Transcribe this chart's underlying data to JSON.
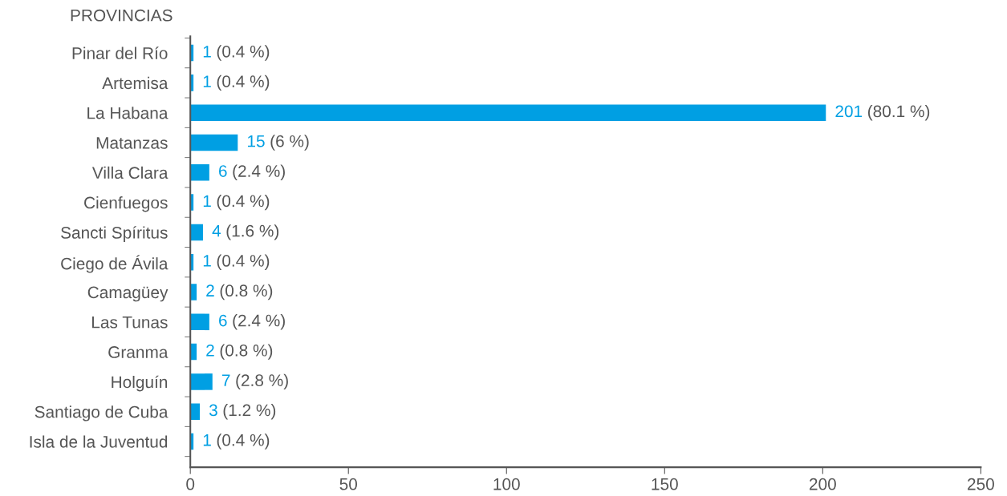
{
  "chart_data": {
    "type": "bar",
    "orientation": "horizontal",
    "ylabel": "PROVINCIAS",
    "categories": [
      "Pinar del Río",
      "Artemisa",
      "La Habana",
      "Matanzas",
      "Villa Clara",
      "Cienfuegos",
      "Sancti Spíritus",
      "Ciego de Ávila",
      "Camagüey",
      "Las Tunas",
      "Granma",
      "Holguín",
      "Santiago de Cuba",
      "Isla de la Juventud"
    ],
    "values": [
      1,
      1,
      201,
      15,
      6,
      1,
      4,
      1,
      2,
      6,
      2,
      7,
      3,
      1
    ],
    "color": "#009fe3",
    "data_labels": true,
    "annotations": [
      {
        "text": "(0.4 %)",
        "x": 1,
        "y": "Pinar del Río"
      },
      {
        "text": "(0.4 %)",
        "x": 1,
        "y": "Artemisa"
      },
      {
        "text": "(80.1 %)",
        "x": 201,
        "y": "La Habana"
      },
      {
        "text": "(6 %)",
        "x": 15,
        "y": "Matanzas"
      },
      {
        "text": "(2.4 %)",
        "x": 6,
        "y": "Villa Clara"
      },
      {
        "text": "(0.4 %)",
        "x": 1,
        "y": "Cienfuegos"
      },
      {
        "text": "(1.6 %)",
        "x": 4,
        "y": "Sancti Spíritus"
      },
      {
        "text": "(0.4 %)",
        "x": 1,
        "y": "Ciego de Ávila"
      },
      {
        "text": "(0.8 %)",
        "x": 2,
        "y": "Camagüey"
      },
      {
        "text": "(2.4 %)",
        "x": 6,
        "y": "Las Tunas"
      },
      {
        "text": "(0.8 %)",
        "x": 2,
        "y": "Granma"
      },
      {
        "text": "(2.8 %)",
        "x": 7,
        "y": "Holguín"
      },
      {
        "text": "(1.2 %)",
        "x": 3,
        "y": "Santiago de Cuba"
      },
      {
        "text": "(0.4 %)",
        "x": 1,
        "y": "Isla de la Juventud"
      }
    ],
    "xlim": [
      0,
      250
    ],
    "xticks": [
      0,
      50,
      100,
      150,
      200,
      250
    ],
    "grid": false
  }
}
